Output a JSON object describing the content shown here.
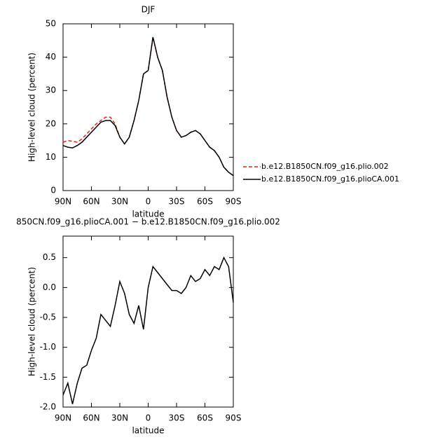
{
  "chart_data": [
    {
      "type": "line",
      "title": "DJF",
      "xlabel": "latitude",
      "ylabel": "High-level cloud (percent)",
      "x": [
        90,
        85,
        80,
        75,
        70,
        65,
        60,
        55,
        50,
        45,
        40,
        35,
        30,
        25,
        20,
        15,
        10,
        5,
        0,
        -5,
        -10,
        -15,
        -20,
        -25,
        -30,
        -35,
        -40,
        -45,
        -50,
        -55,
        -60,
        -65,
        -70,
        -75,
        -80,
        -85,
        -90
      ],
      "series": [
        {
          "name": "b.e12.B1850CN.f09_g16.plio.002",
          "color": "#e8201c",
          "line_style": "dashed",
          "values": [
            14.5,
            15,
            14.8,
            14.5,
            15.5,
            17,
            18.5,
            20,
            21,
            22,
            22,
            20,
            16,
            14,
            16,
            21,
            27,
            35,
            36,
            46,
            40,
            36,
            28,
            22,
            18,
            16,
            16.5,
            17.5,
            18,
            17,
            15,
            13,
            12,
            10,
            7,
            5.5,
            4.5
          ]
        },
        {
          "name": "b.e12.B1850CN.f09_g16.plioCA.001",
          "color": "#000000",
          "line_style": "solid",
          "values": [
            13.5,
            13,
            12.8,
            13.5,
            14.5,
            16,
            17.5,
            19,
            20.5,
            21,
            21,
            19.5,
            16,
            14,
            16,
            21,
            27,
            35,
            36,
            46,
            40,
            36,
            28,
            22,
            18,
            16,
            16.5,
            17.5,
            18,
            17,
            15,
            13,
            12,
            10,
            7,
            5.5,
            4.5
          ]
        }
      ],
      "xlim": [
        90,
        -90
      ],
      "xticks": [
        {
          "value": 90,
          "label": "90N"
        },
        {
          "value": 60,
          "label": "60N"
        },
        {
          "value": 30,
          "label": "30N"
        },
        0,
        {
          "value": -30,
          "label": "30S"
        },
        {
          "value": -60,
          "label": "60S"
        },
        {
          "value": -90,
          "label": "90S"
        }
      ],
      "ylim": [
        0,
        50
      ],
      "yticks": [
        0,
        10,
        20,
        30,
        40,
        50
      ],
      "legend": "right"
    },
    {
      "type": "line",
      "title": "850CN.f09_g16.plioCA.001 − b.e12.B1850CN.f09_g16.plio.002",
      "xlabel": "latitude",
      "ylabel": "High-level cloud (percent)",
      "x": [
        90,
        85,
        80,
        75,
        70,
        65,
        60,
        55,
        50,
        45,
        40,
        35,
        30,
        25,
        20,
        15,
        10,
        5,
        0,
        -5,
        -10,
        -15,
        -20,
        -25,
        -30,
        -35,
        -40,
        -45,
        -50,
        -55,
        -60,
        -65,
        -70,
        -75,
        -80,
        -85,
        -90
      ],
      "series": [
        {
          "color": "#000000",
          "line_style": "solid",
          "values": [
            -1.8,
            -1.6,
            -1.95,
            -1.6,
            -1.35,
            -1.3,
            -1.05,
            -0.85,
            -0.45,
            -0.55,
            -0.65,
            -0.3,
            0.1,
            -0.1,
            -0.45,
            -0.6,
            -0.3,
            -0.7,
            0.0,
            0.35,
            0.25,
            0.15,
            0.05,
            -0.05,
            -0.05,
            -0.1,
            0.0,
            0.2,
            0.1,
            0.15,
            0.3,
            0.2,
            0.35,
            0.3,
            0.5,
            0.35,
            -0.25
          ]
        }
      ],
      "xlim": [
        90,
        -90
      ],
      "xticks": [
        {
          "value": 90,
          "label": "90N"
        },
        {
          "value": 60,
          "label": "60N"
        },
        {
          "value": 30,
          "label": "30N"
        },
        0,
        {
          "value": -30,
          "label": "30S"
        },
        {
          "value": -60,
          "label": "60S"
        },
        {
          "value": -90,
          "label": "90S"
        }
      ],
      "ylim": [
        -2,
        0.86
      ],
      "yticks": [
        {
          "value": -2,
          "label": "-2.0"
        },
        -1.5,
        {
          "value": -1,
          "label": "-1.0"
        },
        -0.5,
        {
          "value": 0,
          "label": "0.0"
        },
        0.5
      ]
    }
  ]
}
